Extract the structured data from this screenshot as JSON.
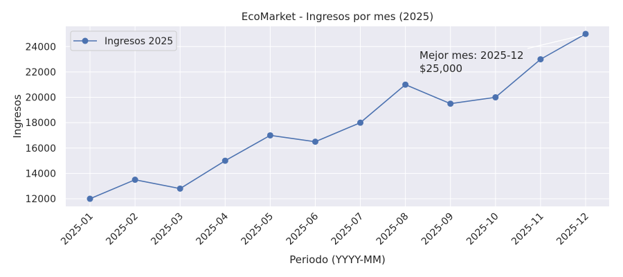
{
  "chart_data": {
    "type": "line",
    "title": "EcoMarket - Ingresos por mes (2025)",
    "xlabel": "Periodo (YYYY-MM)",
    "ylabel": "Ingresos",
    "categories": [
      "2025-01",
      "2025-02",
      "2025-03",
      "2025-04",
      "2025-05",
      "2025-06",
      "2025-07",
      "2025-08",
      "2025-09",
      "2025-10",
      "2025-11",
      "2025-12"
    ],
    "series": [
      {
        "name": "Ingresos 2025",
        "values": [
          12000,
          13500,
          12800,
          15000,
          17000,
          16500,
          18000,
          21000,
          19500,
          20000,
          23000,
          25000
        ]
      }
    ],
    "ylim": [
      11400,
      25600
    ],
    "yticks": [
      12000,
      14000,
      16000,
      18000,
      20000,
      22000,
      24000
    ],
    "grid": true,
    "legend_position": "top-left",
    "annotation": {
      "line1": "Mejor mes: 2025-12",
      "line2": "$25,000",
      "target_category": "2025-12",
      "target_value": 25000
    },
    "colors": {
      "line": "#4c72b0",
      "plot_background": "#eaeaf2",
      "grid": "#ffffff"
    }
  }
}
